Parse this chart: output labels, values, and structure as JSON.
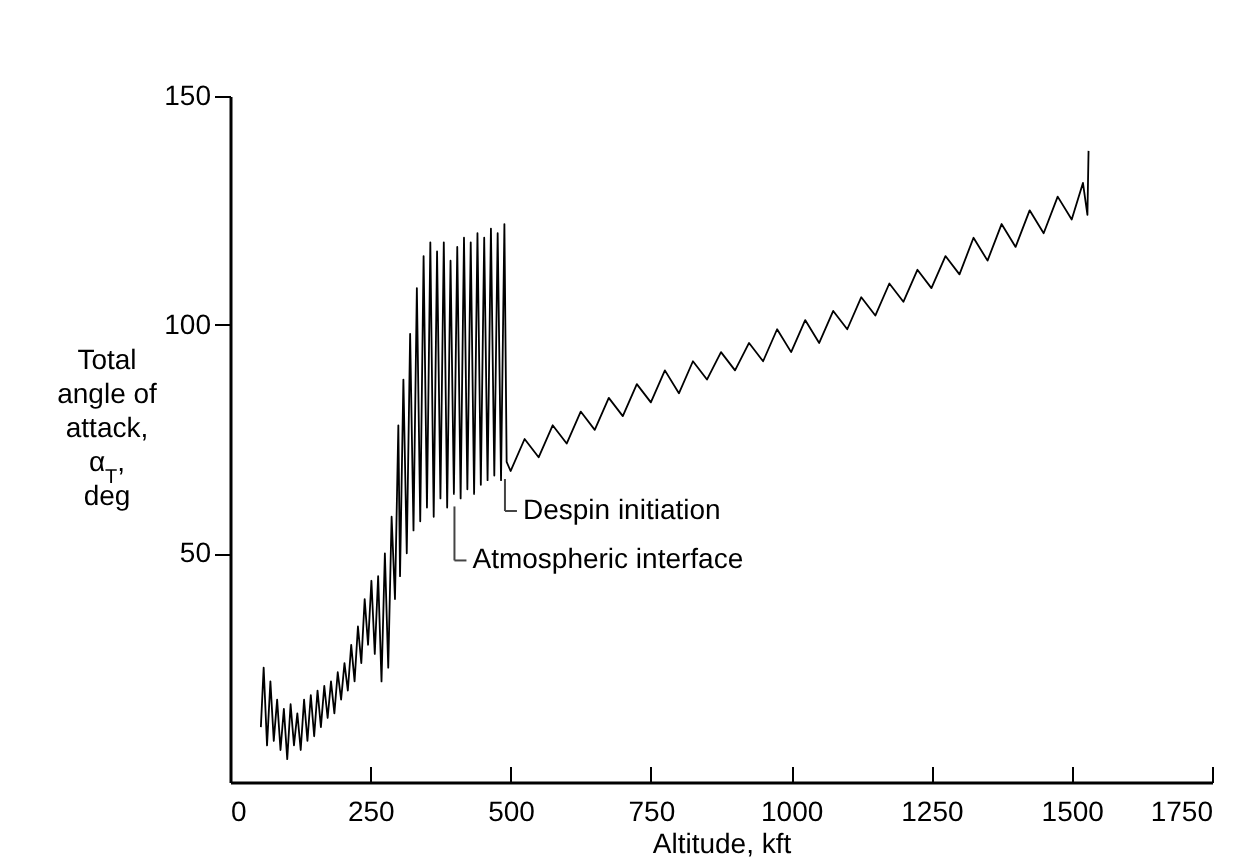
{
  "chart_data": {
    "type": "line",
    "xlabel": "Altitude, kft",
    "ylabel": "Total\nangle of\nattack,\nα$_{T}$,\ndeg",
    "xlim": [
      0,
      1750
    ],
    "ylim": [
      0,
      150
    ],
    "xticks": [
      0,
      250,
      500,
      750,
      1000,
      1250,
      1500,
      1750
    ],
    "yticks": [
      50,
      100,
      150
    ],
    "x": [
      55,
      60,
      66,
      72,
      78,
      84,
      90,
      96,
      102,
      108,
      114,
      120,
      126,
      132,
      138,
      144,
      150,
      156,
      162,
      168,
      174,
      180,
      186,
      192,
      198,
      204,
      210,
      216,
      222,
      228,
      234,
      240,
      246,
      252,
      258,
      264,
      270,
      276,
      282,
      288,
      294,
      300,
      303,
      309,
      315,
      321,
      327,
      333,
      339,
      345,
      351,
      357,
      363,
      369,
      375,
      381,
      387,
      393,
      399,
      405,
      411,
      417,
      423,
      429,
      435,
      441,
      447,
      453,
      459,
      465,
      471,
      477,
      483,
      489,
      493,
      500,
      525,
      550,
      575,
      600,
      625,
      650,
      675,
      700,
      725,
      750,
      775,
      800,
      825,
      850,
      875,
      900,
      925,
      950,
      975,
      1000,
      1025,
      1050,
      1075,
      1100,
      1125,
      1150,
      1175,
      1200,
      1225,
      1250,
      1275,
      1300,
      1325,
      1350,
      1375,
      1400,
      1425,
      1450,
      1475,
      1500,
      1520,
      1528,
      1530
    ],
    "series": [
      {
        "color": "#000000",
        "values": [
          12,
          25,
          8,
          22,
          9,
          18,
          7,
          16,
          5,
          17,
          8,
          15,
          7,
          18,
          9,
          19,
          10,
          20,
          12,
          21,
          14,
          22,
          15,
          24,
          18,
          26,
          20,
          30,
          22,
          34,
          26,
          40,
          30,
          44,
          28,
          45,
          22,
          50,
          25,
          58,
          40,
          78,
          45,
          88,
          50,
          98,
          55,
          108,
          57,
          115,
          60,
          118,
          58,
          116,
          62,
          118,
          60,
          114,
          63,
          117,
          62,
          119,
          64,
          118,
          63,
          120,
          65,
          119,
          66,
          121,
          67,
          120,
          66,
          122,
          70,
          68,
          75,
          71,
          78,
          74,
          81,
          77,
          84,
          80,
          87,
          83,
          90,
          85,
          92,
          88,
          94,
          90,
          96,
          92,
          99,
          94,
          101,
          96,
          103,
          99,
          106,
          102,
          109,
          105,
          112,
          108,
          115,
          111,
          119,
          114,
          122,
          117,
          125,
          120,
          128,
          123,
          131,
          124,
          138
        ]
      }
    ],
    "annotations": [
      {
        "text": "Despin initiation",
        "x": 490,
        "y": 68
      },
      {
        "text": "Atmospheric interface",
        "x": 400,
        "y": 62
      }
    ]
  }
}
